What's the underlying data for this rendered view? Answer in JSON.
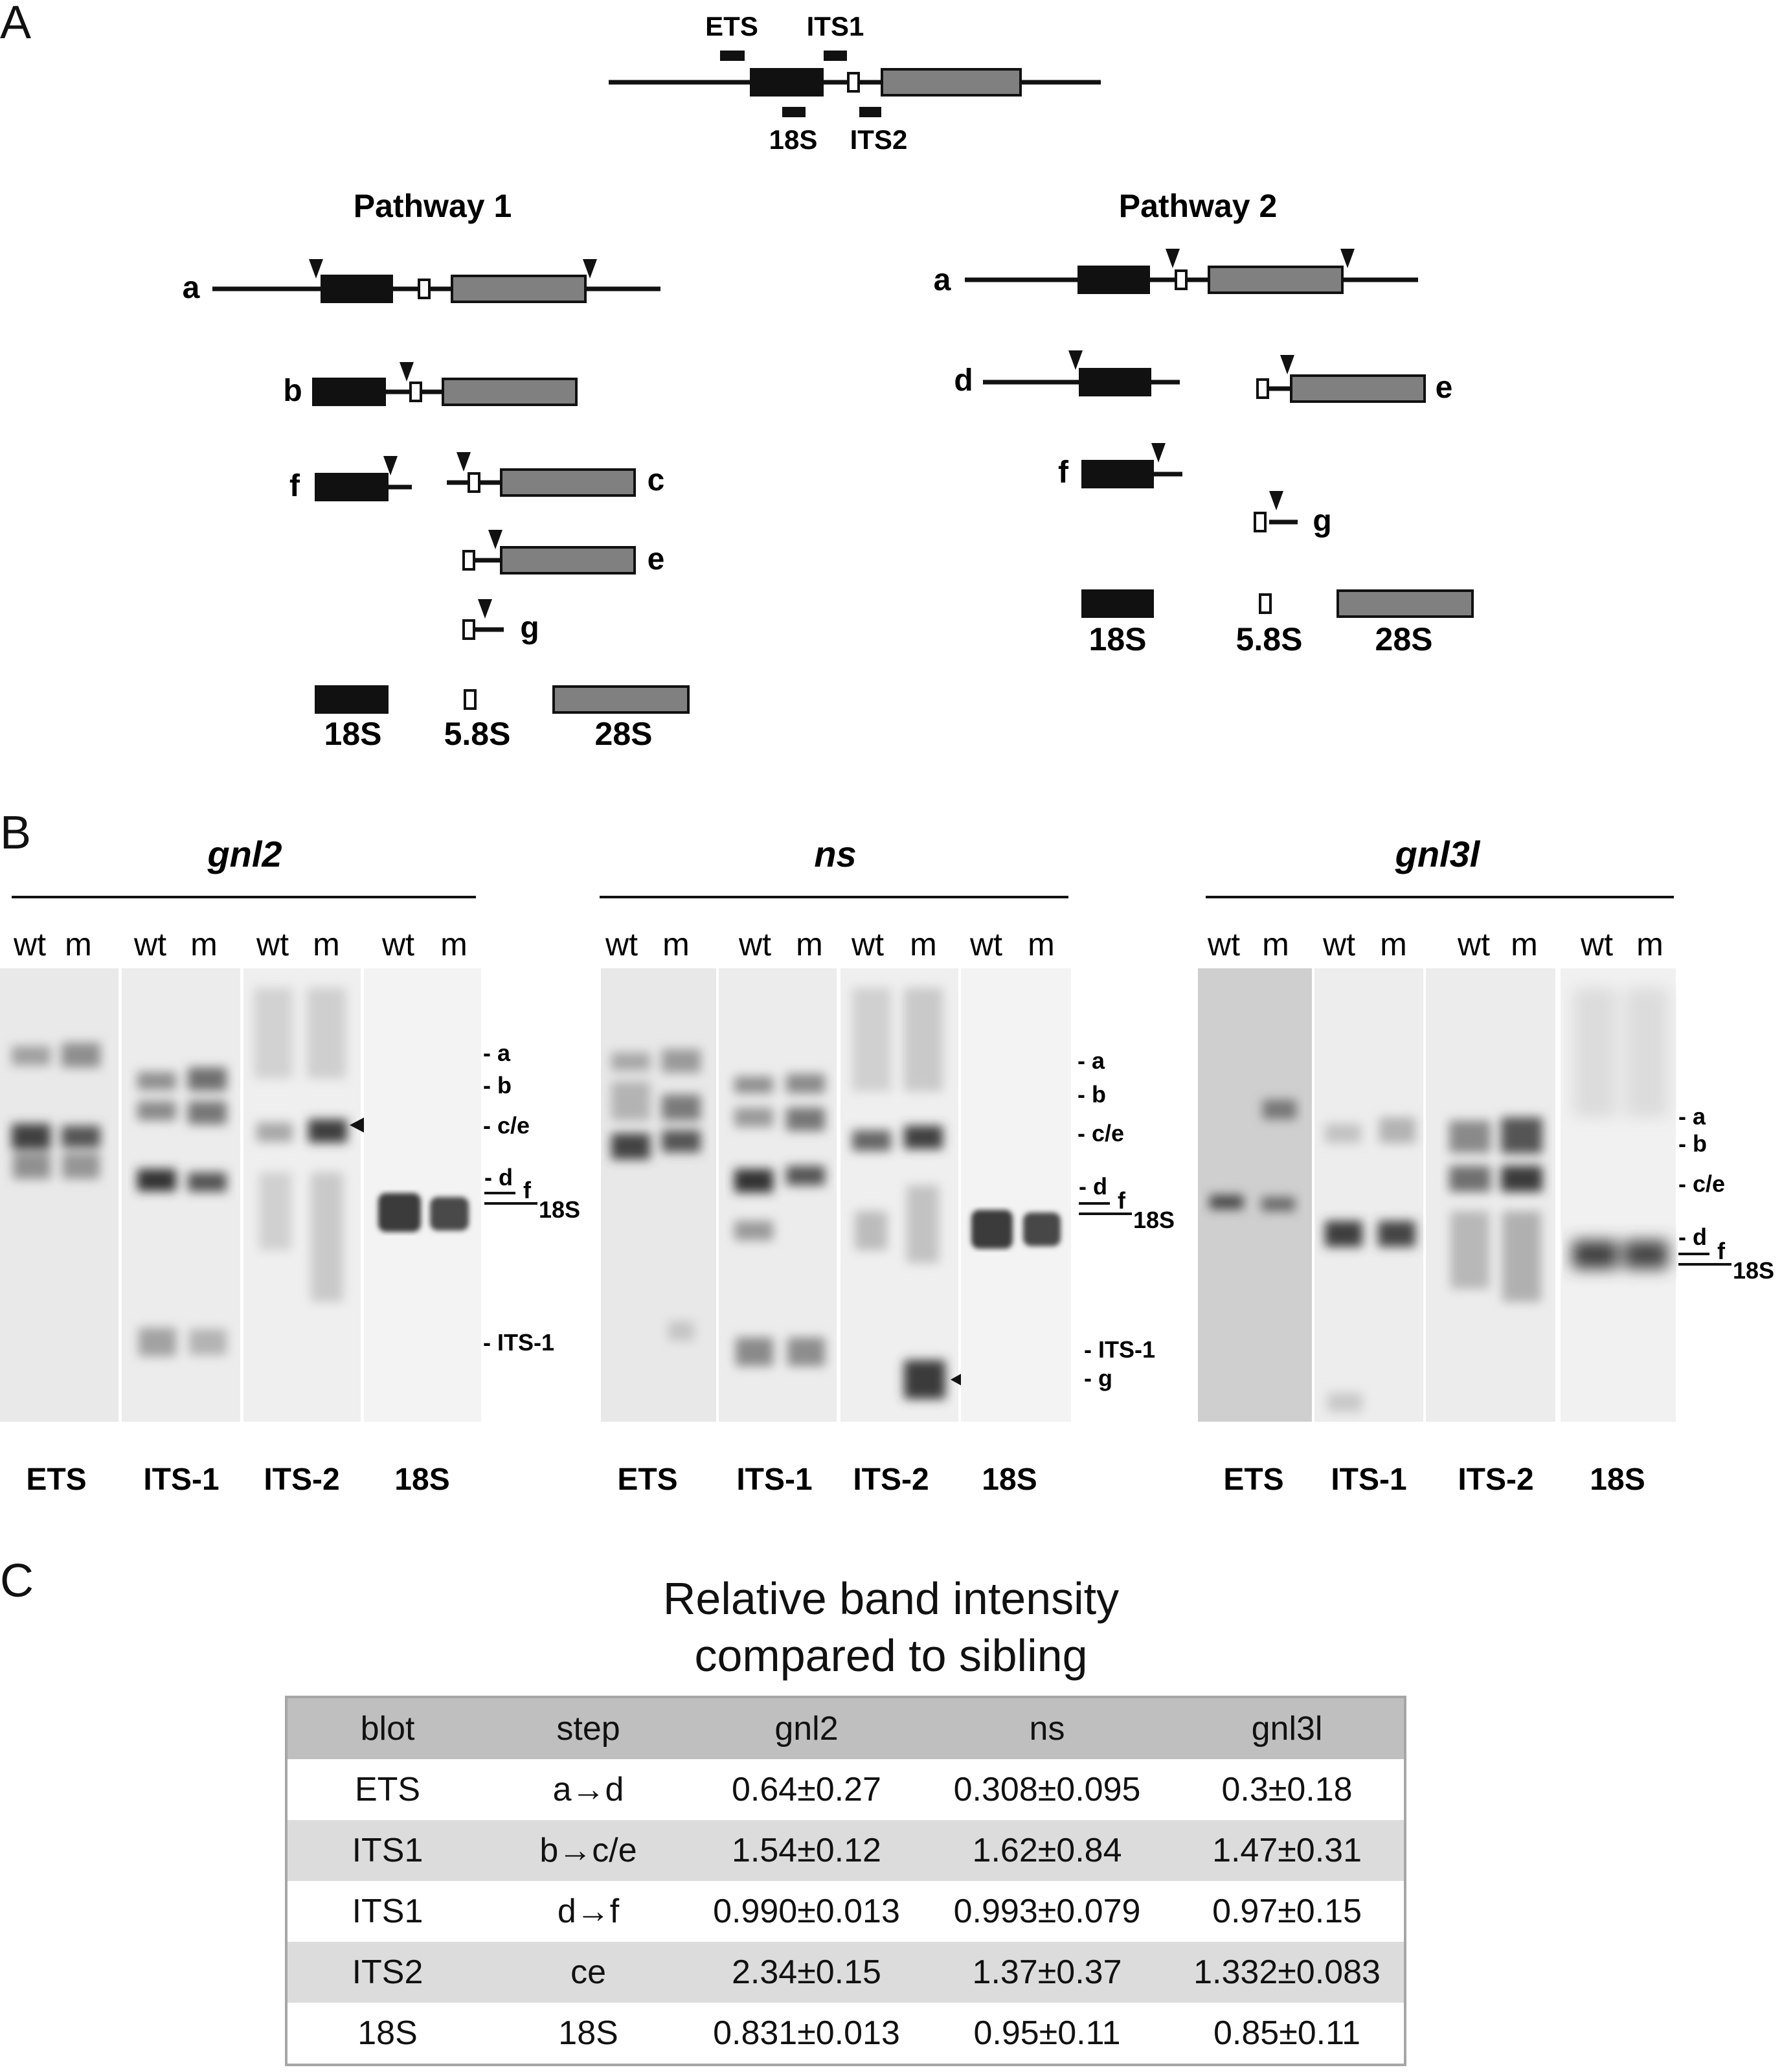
{
  "panel_labels": {
    "a": "A",
    "b": "B",
    "c": "C"
  },
  "schematic": {
    "probes": {
      "ets": "ETS",
      "its1": "ITS1",
      "s18": "18S",
      "its2": "ITS2"
    },
    "pathway1": {
      "title": "Pathway 1",
      "labels": {
        "a": "a",
        "b": "b",
        "f": "f",
        "c": "c",
        "e": "e",
        "g": "g"
      },
      "products": {
        "s18": "18S",
        "s58": "5.8S",
        "s28": "28S"
      }
    },
    "pathway2": {
      "title": "Pathway 2",
      "labels": {
        "a": "a",
        "d": "d",
        "e": "e",
        "f": "f",
        "g": "g"
      },
      "products": {
        "s18": "18S",
        "s58": "5.8S",
        "s28": "28S"
      }
    }
  },
  "blots": [
    {
      "gene": "gnl2",
      "lanes": [
        "wt",
        "m",
        "wt",
        "m",
        "wt",
        "m",
        "wt",
        "m"
      ],
      "probes": [
        "ETS",
        "ITS-1",
        "ITS-2",
        "18S"
      ],
      "markers": {
        "a": "- a",
        "b": "- b",
        "ce": "- c/e",
        "d": "- d",
        "f": "f",
        "s18": "18S",
        "its1": "- ITS-1"
      }
    },
    {
      "gene": "ns",
      "lanes": [
        "wt",
        "m",
        "wt",
        "m",
        "wt",
        "m",
        "wt",
        "m"
      ],
      "probes": [
        "ETS",
        "ITS-1",
        "ITS-2",
        "18S"
      ],
      "markers": {
        "a": "- a",
        "b": "- b",
        "ce": "- c/e",
        "d": "- d",
        "f": "f",
        "s18": "18S",
        "its1": "- ITS-1",
        "g": "- g"
      }
    },
    {
      "gene": "gnl3l",
      "lanes": [
        "wt",
        "m",
        "wt",
        "m",
        "wt",
        "m",
        "wt",
        "m"
      ],
      "probes": [
        "ETS",
        "ITS-1",
        "ITS-2",
        "18S"
      ],
      "markers": {
        "a": "- a",
        "b": "- b",
        "ce": "- c/e",
        "d": "- d",
        "f": "f",
        "s18": "18S"
      }
    }
  ],
  "table": {
    "title_line1": "Relative band intensity",
    "title_line2": "compared to sibling",
    "headers": [
      "blot",
      "step",
      "gnl2",
      "ns",
      "gnl3l"
    ],
    "rows": [
      [
        "ETS",
        "a→d",
        "0.64±0.27",
        "0.308±0.095",
        "0.3±0.18"
      ],
      [
        "ITS1",
        "b→c/e",
        "1.54±0.12",
        "1.62±0.84",
        "1.47±0.31"
      ],
      [
        "ITS1",
        "d→f",
        "0.990±0.013",
        "0.993±0.079",
        "0.97±0.15"
      ],
      [
        "ITS2",
        "ce",
        "2.34±0.15",
        "1.37±0.37",
        "1.332±0.083"
      ],
      [
        "18S",
        "18S",
        "0.831±0.013",
        "0.95±0.11",
        "0.85±0.11"
      ]
    ]
  },
  "colors": {
    "black_region": "#111111",
    "gray_region": "#808080",
    "header_bg": "#bfbfbf",
    "stripe_bg": "#dcdcdc"
  }
}
